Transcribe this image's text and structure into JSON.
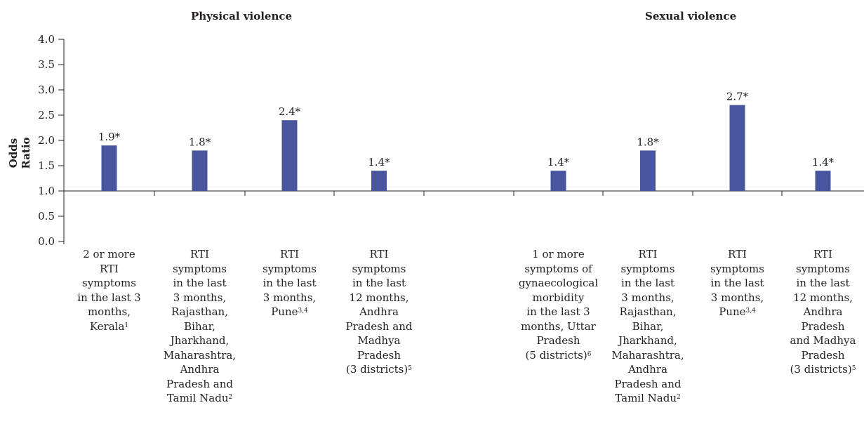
{
  "chart_data": {
    "type": "bar",
    "ylabel": "Odds Ratio",
    "ylim": [
      0,
      4
    ],
    "yticks": [
      "0.0",
      "0.5",
      "1.0",
      "1.5",
      "2.0",
      "2.5",
      "3.0",
      "3.5",
      "4.0"
    ],
    "bar_color": "#4a55a0",
    "groups": [
      {
        "title": "Physical violence",
        "categories": [
          {
            "lines": [
              "2 or more",
              "RTI",
              "symptoms",
              "in the last 3",
              "months,",
              "Kerala"
            ],
            "sup": "1"
          },
          {
            "lines": [
              "RTI",
              "symptoms",
              "in the last",
              "3 months,",
              "Rajasthan,",
              "Bihar,",
              "Jharkhand,",
              "Maharashtra,",
              "Andhra",
              "Pradesh and",
              "Tamil Nadu"
            ],
            "sup": "2"
          },
          {
            "lines": [
              "RTI",
              "symptoms",
              "in the last",
              "3 months,",
              "Pune"
            ],
            "sup": "3,4"
          },
          {
            "lines": [
              "RTI",
              "symptoms",
              "in the last",
              "12 months,",
              "Andhra",
              "Pradesh and",
              "Madhya",
              "Pradesh",
              "(3 districts)"
            ],
            "sup": "5"
          }
        ],
        "values": [
          1.9,
          1.8,
          2.4,
          1.4
        ],
        "labels": [
          "1.9*",
          "1.8*",
          "2.4*",
          "1.4*"
        ]
      },
      {
        "title": "Sexual violence",
        "categories": [
          {
            "lines": [
              "1 or more",
              "symptoms of",
              "gynaecological",
              "morbidity",
              "in the last 3",
              "months, Uttar",
              "Pradesh",
              "(5 districts)"
            ],
            "sup": "6"
          },
          {
            "lines": [
              "RTI",
              "symptoms",
              "in the last",
              "3 months,",
              "Rajasthan,",
              "Bihar,",
              "Jharkhand,",
              "Maharashtra,",
              "Andhra",
              "Pradesh and",
              "Tamil Nadu"
            ],
            "sup": "2"
          },
          {
            "lines": [
              "RTI",
              "symptoms",
              "in the last",
              "3 months,",
              "Pune"
            ],
            "sup": "3,4"
          },
          {
            "lines": [
              "RTI",
              "symptoms",
              "in the last",
              "12 months,",
              "Andhra",
              "Pradesh",
              "and Madhya",
              "Pradesh",
              "(3 districts)"
            ],
            "sup": "5"
          }
        ],
        "values": [
          1.4,
          1.8,
          2.7,
          1.4
        ],
        "labels": [
          "1.4*",
          "1.8*",
          "2.7*",
          "1.4*"
        ]
      }
    ]
  }
}
